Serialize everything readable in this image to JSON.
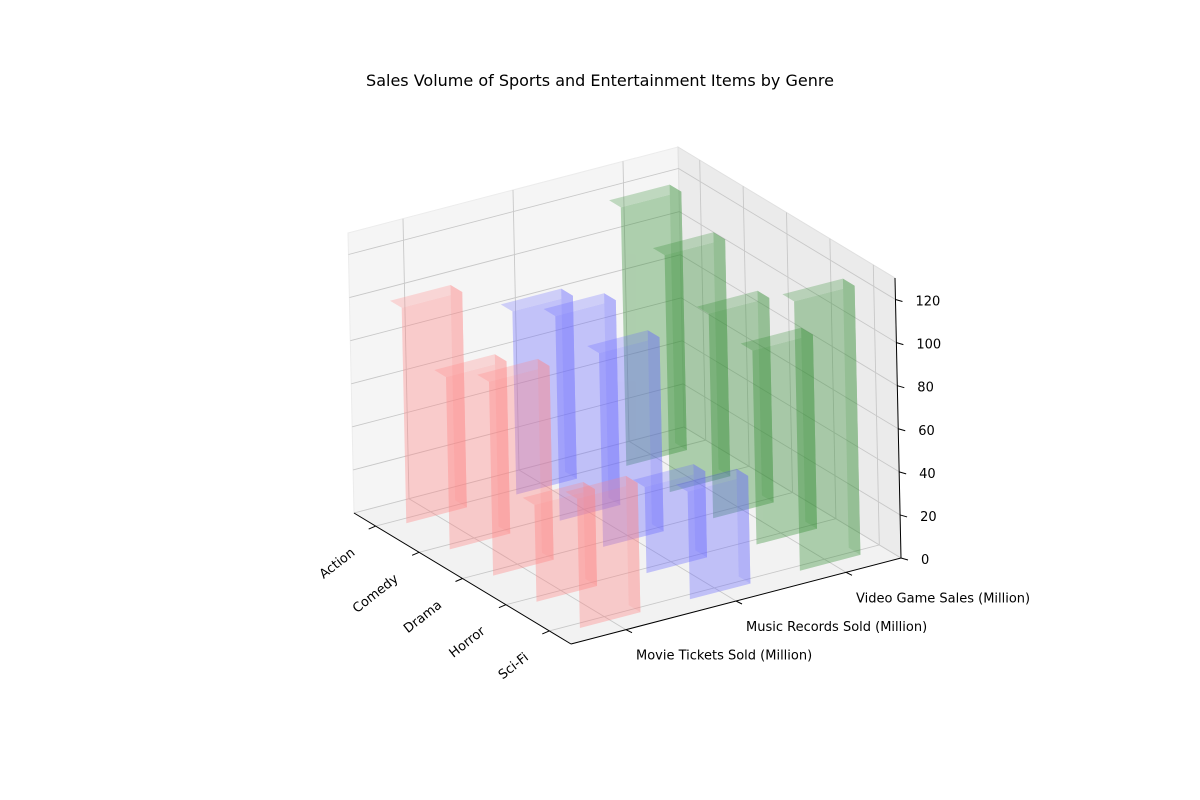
{
  "chart_data": {
    "type": "bar3d",
    "title": "Sales Volume of Sports and Entertainment Items by Genre",
    "categories": [
      "Action",
      "Comedy",
      "Drama",
      "Horror",
      "Sci-Fi"
    ],
    "series": [
      {
        "name": "Movie Tickets Sold (Million)",
        "values": [
          100,
          80,
          90,
          45,
          60
        ],
        "color": "#ff8080"
      },
      {
        "name": "Music Records Sold (Million)",
        "values": [
          85,
          95,
          90,
          40,
          50
        ],
        "color": "#6666ff"
      },
      {
        "name": "Video Game Sales (Million)",
        "values": [
          120,
          110,
          95,
          90,
          125
        ],
        "color": "#2e8b2e"
      }
    ],
    "zlim": [
      0,
      130
    ],
    "zticks": [
      0,
      20,
      40,
      60,
      80,
      100,
      120
    ],
    "grid": true
  }
}
